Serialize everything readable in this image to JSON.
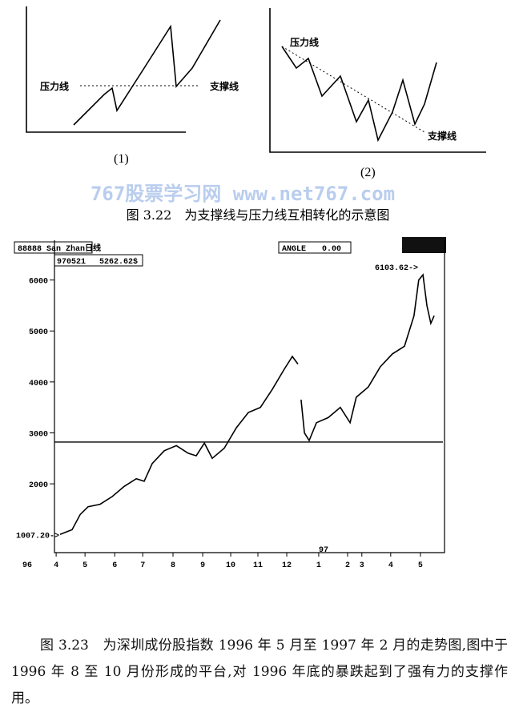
{
  "diagram1": {
    "label_resistance": "压力线",
    "label_support": "支撑线",
    "caption": "(1)"
  },
  "diagram2": {
    "label_resistance": "压力线",
    "label_support": "支撑线",
    "caption": "(2)"
  },
  "watermark": "767股票学习网 www.net767.com",
  "figure_3_22_caption": "图 3.22　为支撑线与压力线互相转化的示意图",
  "chart": {
    "type": "line",
    "header_name": "88888  San Zhan日线",
    "header_date": "970521",
    "header_value": "5262.62$",
    "angle_label": "ANGLE",
    "angle_value": "0.00",
    "ylim": [
      650,
      6780
    ],
    "yticks": [
      2000,
      3000,
      4000,
      5000,
      6000
    ],
    "xlim": [
      -0.06,
      13.86
    ],
    "xticks": [
      {
        "value": 0,
        "label": "4"
      },
      {
        "value": 1.03,
        "label": "5"
      },
      {
        "value": 2.09,
        "label": "6"
      },
      {
        "value": 3.09,
        "label": "7"
      },
      {
        "value": 4.17,
        "label": "8"
      },
      {
        "value": 5.23,
        "label": "9"
      },
      {
        "value": 6.23,
        "label": "10"
      },
      {
        "value": 7.2,
        "label": "11"
      },
      {
        "value": 8.23,
        "label": "12"
      },
      {
        "value": 9.37,
        "label": "1"
      },
      {
        "value": 10.4,
        "label": "2"
      },
      {
        "value": 10.91,
        "label": "3"
      },
      {
        "value": 11.94,
        "label": "4"
      },
      {
        "value": 13,
        "label": "5"
      }
    ],
    "year_start": "96",
    "year_mark": "97",
    "x": [
      0.14,
      0.57,
      0.86,
      1.14,
      1.57,
      2.0,
      2.43,
      2.86,
      3.14,
      3.43,
      3.86,
      4.29,
      4.71,
      5.0,
      5.29,
      5.57,
      6.0,
      6.43,
      6.86,
      7.29,
      7.71,
      8.14,
      8.43,
      8.63,
      8.7,
      8.74,
      8.86,
      9.03,
      9.29,
      9.71,
      10.14,
      10.49,
      10.71,
      11.14,
      11.57,
      12.0,
      12.43,
      12.77,
      12.94,
      13.09,
      13.23,
      13.37,
      13.49
    ],
    "values": [
      1007,
      1100,
      1400,
      1550,
      1600,
      1750,
      1950,
      2100,
      2050,
      2400,
      2650,
      2750,
      2600,
      2550,
      2800,
      2500,
      2700,
      3100,
      3400,
      3500,
      3850,
      4250,
      4500,
      4350,
      null,
      3650,
      3000,
      2850,
      3200,
      3300,
      3500,
      3200,
      3700,
      3900,
      4300,
      4550,
      4700,
      5300,
      6000,
      6103,
      5500,
      5150,
      5300
    ],
    "low_label": "1007.20->",
    "high_label": "6103.62->",
    "support_level": 2820
  },
  "figure_3_23_caption": "图 3.23　为深圳成份股指数 1996 年 5 月至 1997 年 2 月的走势图,图中于 1996 年 8 至 10 月份形成的平台,对 1996 年底的暴跌起到了强有力的支撑作用。"
}
